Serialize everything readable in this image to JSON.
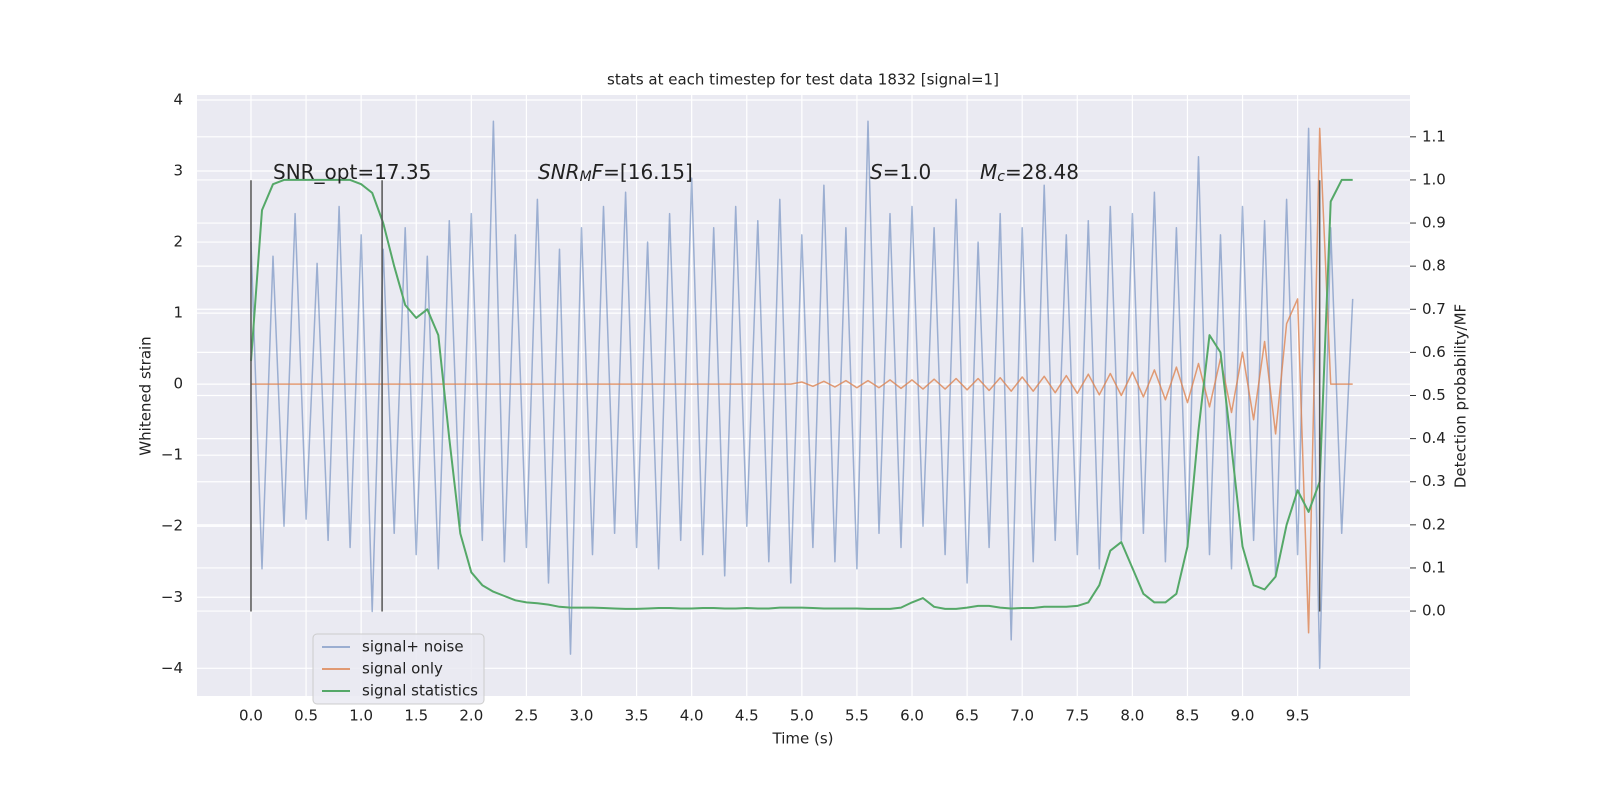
{
  "chart_data": {
    "type": "line",
    "title": "stats at each timestep for test data 1832 [signal=1]",
    "xlabel": "Time (s)",
    "ylabel": "Whitened strain",
    "y2label": "Detection probability/MF",
    "xlim": [
      -0.49,
      10.52
    ],
    "ylim": [
      -4.39,
      4.07
    ],
    "y2lim": [
      -0.197,
      1.197
    ],
    "xticks": [
      {
        "value": 0,
        "label": "0.0"
      },
      0.5,
      {
        "value": 1,
        "label": "1.0"
      },
      1.5,
      {
        "value": 2,
        "label": "2.0"
      },
      2.5,
      {
        "value": 3,
        "label": "3.0"
      },
      3.5,
      {
        "value": 4,
        "label": "4.0"
      },
      4.5,
      {
        "value": 5,
        "label": "5.0"
      },
      5.5,
      {
        "value": 6,
        "label": "6.0"
      },
      6.5,
      {
        "value": 7,
        "label": "7.0"
      },
      7.5,
      {
        "value": 8,
        "label": "8.0"
      },
      8.5,
      {
        "value": 9,
        "label": "9.0"
      },
      9.5
    ],
    "yticks": [
      {
        "value": -4,
        "label": "−4"
      },
      {
        "value": -3,
        "label": "−3"
      },
      {
        "value": -2,
        "label": "−2"
      },
      {
        "value": -1,
        "label": "−1"
      },
      0,
      1,
      2,
      3,
      4
    ],
    "y2ticks": [
      {
        "value": 0,
        "label": "0.0"
      },
      0.1,
      0.2,
      0.3,
      0.4,
      0.5,
      0.6,
      0.7,
      0.8,
      0.9,
      {
        "value": 1,
        "label": "1.0"
      },
      1.1
    ],
    "grid": true,
    "legend": "lower left",
    "x": [
      0,
      0.1,
      0.2,
      0.3,
      0.4,
      0.5,
      0.6,
      0.7,
      0.8,
      0.9,
      1,
      1.1,
      1.2,
      1.3,
      1.4,
      1.5,
      1.6,
      1.7,
      1.8,
      1.9,
      2,
      2.1,
      2.2,
      2.3,
      2.4,
      2.5,
      2.6,
      2.7,
      2.8,
      2.9,
      3,
      3.1,
      3.2,
      3.3,
      3.4,
      3.5,
      3.6,
      3.7,
      3.8,
      3.9,
      4,
      4.1,
      4.2,
      4.3,
      4.4,
      4.5,
      4.6,
      4.7,
      4.8,
      4.9,
      5,
      5.1,
      5.2,
      5.3,
      5.4,
      5.5,
      5.6,
      5.7,
      5.8,
      5.9,
      6,
      6.1,
      6.2,
      6.3,
      6.4,
      6.5,
      6.6,
      6.7,
      6.8,
      6.9,
      7,
      7.1,
      7.2,
      7.3,
      7.4,
      7.5,
      7.6,
      7.7,
      7.8,
      7.9,
      8,
      8.1,
      8.2,
      8.3,
      8.4,
      8.5,
      8.6,
      8.7,
      8.8,
      8.9,
      9,
      9.1,
      9.2,
      9.3,
      9.4,
      9.5,
      9.6,
      9.7,
      9.8,
      9.9,
      10
    ],
    "series": [
      {
        "name": "signal+ noise",
        "color": "#4c72b0",
        "alpha": 0.5,
        "values": [
          2.0,
          -2.6,
          1.8,
          -2.0,
          2.4,
          -1.9,
          1.7,
          -2.2,
          2.5,
          -2.3,
          2.1,
          -3.2,
          1.9,
          -2.1,
          2.2,
          -2.4,
          1.8,
          -2.6,
          2.3,
          -2.0,
          2.4,
          -2.2,
          3.7,
          -2.5,
          2.1,
          -2.3,
          2.6,
          -2.8,
          1.9,
          -3.8,
          2.2,
          -2.4,
          2.5,
          -2.1,
          2.7,
          -2.3,
          2.0,
          -2.6,
          2.4,
          -2.2,
          2.9,
          -2.4,
          2.2,
          -2.7,
          2.5,
          -2.0,
          2.3,
          -2.5,
          2.6,
          -2.8,
          2.1,
          -2.3,
          2.8,
          -2.5,
          2.2,
          -2.6,
          3.7,
          -2.1,
          2.4,
          -2.3,
          2.5,
          -2.0,
          2.2,
          -2.4,
          2.6,
          -2.8,
          2.0,
          -2.3,
          2.4,
          -3.6,
          2.2,
          -2.5,
          2.8,
          -2.2,
          2.1,
          -2.4,
          2.3,
          -2.6,
          2.5,
          -2.2,
          2.4,
          -2.1,
          2.7,
          -2.5,
          2.2,
          -2.3,
          3.2,
          -2.4,
          2.1,
          -2.6,
          2.5,
          -2.2,
          2.3,
          -2.7,
          2.6,
          -2.4,
          3.6,
          -4.0,
          2.2,
          -2.1,
          1.2
        ]
      },
      {
        "name": "signal only",
        "color": "#dd8452",
        "alpha": 0.8,
        "values": [
          0,
          0,
          0,
          0,
          0,
          0,
          0,
          0,
          0,
          0,
          0,
          0,
          0,
          0,
          0,
          0,
          0,
          0,
          0,
          0,
          0,
          0,
          0,
          0,
          0,
          0,
          0,
          0,
          0,
          0,
          0,
          0,
          0,
          0,
          0,
          0,
          0,
          0,
          0,
          0,
          0,
          0,
          0,
          0,
          0,
          0,
          0,
          0,
          0,
          0,
          0.03,
          -0.03,
          0.04,
          -0.04,
          0.05,
          -0.05,
          0.05,
          -0.05,
          0.06,
          -0.06,
          0.06,
          -0.07,
          0.07,
          -0.07,
          0.08,
          -0.08,
          0.08,
          -0.09,
          0.09,
          -0.1,
          0.1,
          -0.1,
          0.11,
          -0.12,
          0.12,
          -0.13,
          0.14,
          -0.15,
          0.15,
          -0.16,
          0.17,
          -0.18,
          0.2,
          -0.22,
          0.24,
          -0.26,
          0.29,
          -0.32,
          0.36,
          -0.4,
          0.45,
          -0.5,
          0.6,
          -0.7,
          0.85,
          1.2,
          -3.5,
          3.6,
          0,
          0,
          0
        ]
      },
      {
        "name": "signal statistics",
        "color": "#55a868",
        "axis": "y2",
        "values": [
          0.58,
          0.93,
          0.99,
          1.0,
          1.0,
          1.0,
          1.0,
          1.0,
          1.0,
          1.0,
          0.99,
          0.97,
          0.9,
          0.8,
          0.71,
          0.68,
          0.7,
          0.64,
          0.4,
          0.18,
          0.09,
          0.06,
          0.045,
          0.035,
          0.025,
          0.02,
          0.018,
          0.015,
          0.01,
          0.008,
          0.008,
          0.008,
          0.007,
          0.006,
          0.005,
          0.005,
          0.006,
          0.007,
          0.007,
          0.006,
          0.006,
          0.007,
          0.007,
          0.006,
          0.006,
          0.007,
          0.006,
          0.006,
          0.008,
          0.008,
          0.008,
          0.007,
          0.006,
          0.006,
          0.006,
          0.006,
          0.005,
          0.005,
          0.005,
          0.008,
          0.02,
          0.03,
          0.01,
          0.005,
          0.005,
          0.008,
          0.012,
          0.012,
          0.008,
          0.006,
          0.007,
          0.007,
          0.01,
          0.01,
          0.01,
          0.012,
          0.02,
          0.06,
          0.14,
          0.16,
          0.1,
          0.04,
          0.02,
          0.02,
          0.04,
          0.15,
          0.42,
          0.64,
          0.6,
          0.38,
          0.15,
          0.06,
          0.05,
          0.08,
          0.2,
          0.28,
          0.23,
          0.3,
          0.95,
          1.0,
          1.0
        ]
      }
    ],
    "vlines": {
      "x": [
        0,
        1.19,
        9.7
      ],
      "ymin": -3.2,
      "ymax": 2.87,
      "color": "#555555"
    },
    "annotations": [
      {
        "parts": [
          {
            "text": "SNR_opt=17.35"
          }
        ]
      },
      {
        "parts": [
          {
            "text": "SNR",
            "italic": true
          },
          {
            "text": "M",
            "italic": true,
            "sub": true
          },
          {
            "text": "F",
            "italic": true
          },
          {
            "text": "=[16.15]"
          }
        ]
      },
      {
        "parts": [
          {
            "text": "S",
            "italic": true
          },
          {
            "text": "=1.0"
          }
        ]
      },
      {
        "parts": [
          {
            "text": "M",
            "italic": true
          },
          {
            "text": "c",
            "italic": true,
            "sub": true
          },
          {
            "text": "=28.48"
          }
        ]
      }
    ]
  }
}
